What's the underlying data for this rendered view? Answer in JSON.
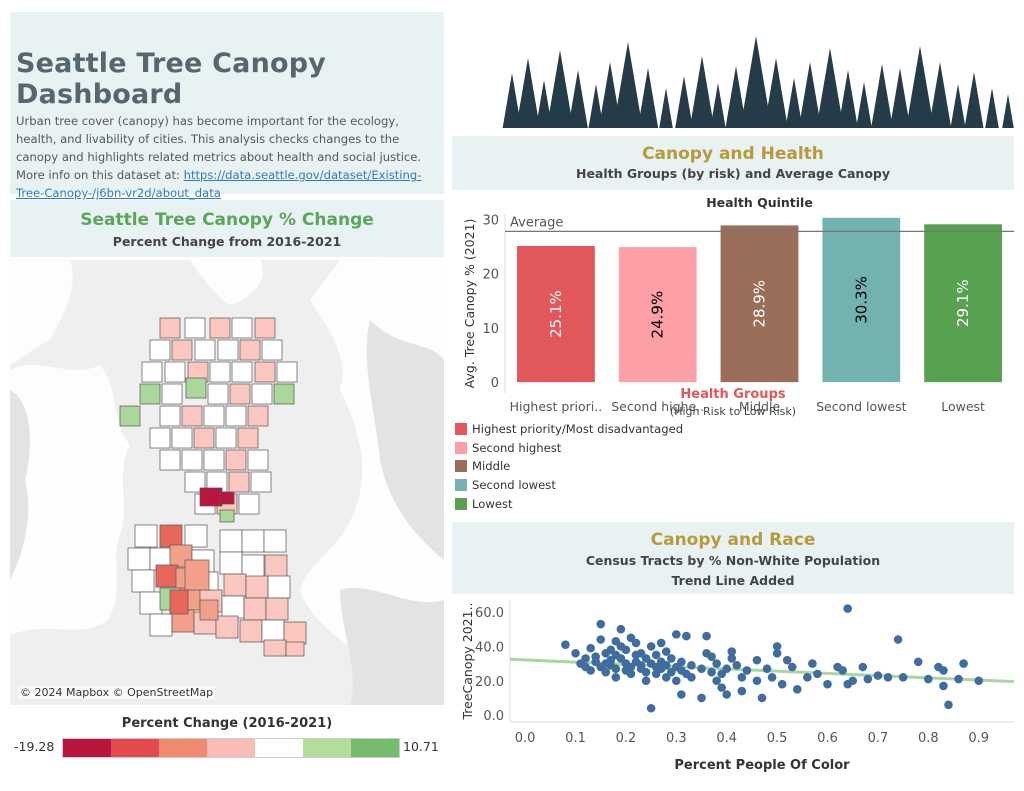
{
  "intro": {
    "title": "Seattle Tree Canopy Dashboard",
    "body": "Urban tree cover (canopy) has become important for the ecology, health, and livability of cities. This analysis checks changes to the canopy and highlights related metrics about health and social justice. More info on this dataset at: ",
    "link": "https://data.seattle.gov/dataset/Existing-Tree-Canopy-/j6bn-vr2d/about_data"
  },
  "map": {
    "title": "Seattle Tree Canopy % Change",
    "subtitle": "Percent Change from 2016-2021",
    "attribution": "© 2024 Mapbox © OpenStreetMap",
    "legend": {
      "title": "Percent Change (2016-2021)",
      "min": "-19.28",
      "max": "10.71",
      "colors": [
        "#b8163e",
        "#e24a4f",
        "#f08a6e",
        "#fbbcb5",
        "#ffffff",
        "#b2dd9c",
        "#74be6b"
      ]
    },
    "tract_colors": {
      "dark_red": "#b8163e",
      "red": "#e9665a",
      "salmon": "#f3a08a",
      "pink": "#fbc6bf",
      "white": "#ffffff",
      "green": "#a9d89a"
    }
  },
  "health": {
    "title": "Canopy and Health",
    "subtitle": "Health Groups (by risk) and Average Canopy",
    "legend_title": "Health Groups",
    "legend_subtitle": "(High Risk to Low Risk)",
    "legend": [
      {
        "label": "Highest priority/Most disadvantaged",
        "color": "#e1575a"
      },
      {
        "label": "Second highest",
        "color": "#fc9fa7"
      },
      {
        "label": "Middle",
        "color": "#9b6e59"
      },
      {
        "label": "Second lowest",
        "color": "#72b3b0"
      },
      {
        "label": "Lowest",
        "color": "#57a150"
      }
    ]
  },
  "race": {
    "title": "Canopy and Race",
    "subtitle1": "Census Tracts by % Non-White Population",
    "subtitle2": "Trend Line Added"
  },
  "chart_data": [
    {
      "type": "bar",
      "title": "Health Quintile",
      "ylabel": "Avg. Tree Canopy % (2021)",
      "xlabel": "",
      "categories": [
        "Highest priori..",
        "Second highe..",
        "Middle",
        "Second lowest",
        "Lowest"
      ],
      "values": [
        25.1,
        24.9,
        28.9,
        30.3,
        29.1
      ],
      "data_labels": [
        "25.1%",
        "24.9%",
        "28.9%",
        "30.3%",
        "29.1%"
      ],
      "colors": [
        "#e1575a",
        "#fc9fa7",
        "#9b6e59",
        "#72b3b0",
        "#57a150"
      ],
      "label_colors": [
        "#ffffff",
        "#000000",
        "#ffffff",
        "#000000",
        "#ffffff"
      ],
      "reference_line": {
        "label": "Average",
        "value": 27.8
      },
      "yticks": [
        0,
        10,
        20,
        30
      ],
      "ylim": [
        -2,
        31
      ]
    },
    {
      "type": "scatter",
      "xlabel": "Percent People Of Color",
      "ylabel": "TreeCanopy 2021..",
      "xlim": [
        -0.03,
        0.97
      ],
      "ylim": [
        -4,
        67
      ],
      "xticks": [
        0.0,
        0.1,
        0.2,
        0.3,
        0.4,
        0.5,
        0.6,
        0.7,
        0.8,
        0.9
      ],
      "xtick_labels": [
        "0.0",
        "0.1",
        "0.2",
        "0.3",
        "0.4",
        "0.5",
        "0.6",
        "0.7",
        "0.8",
        "0.9"
      ],
      "yticks": [
        0,
        20,
        40,
        60
      ],
      "ytick_labels": [
        "0.0",
        "20.0",
        "40.0",
        "60.0"
      ],
      "point_color": "#3f6d9e",
      "trend_color": "#a8d8a0",
      "trend": {
        "x": [
          -0.03,
          0.97
        ],
        "y": [
          32.5,
          19.5
        ]
      },
      "points": [
        [
          0.08,
          41
        ],
        [
          0.1,
          36
        ],
        [
          0.11,
          30
        ],
        [
          0.12,
          33
        ],
        [
          0.12,
          28
        ],
        [
          0.13,
          26
        ],
        [
          0.13,
          39
        ],
        [
          0.14,
          34
        ],
        [
          0.14,
          31
        ],
        [
          0.15,
          44
        ],
        [
          0.15,
          28
        ],
        [
          0.15,
          53
        ],
        [
          0.16,
          36
        ],
        [
          0.16,
          30
        ],
        [
          0.16,
          25
        ],
        [
          0.17,
          38
        ],
        [
          0.17,
          32
        ],
        [
          0.17,
          29
        ],
        [
          0.18,
          43
        ],
        [
          0.18,
          35
        ],
        [
          0.18,
          27
        ],
        [
          0.18,
          22
        ],
        [
          0.19,
          50
        ],
        [
          0.19,
          40
        ],
        [
          0.19,
          33
        ],
        [
          0.2,
          30
        ],
        [
          0.2,
          26
        ],
        [
          0.2,
          38
        ],
        [
          0.21,
          28
        ],
        [
          0.21,
          45
        ],
        [
          0.21,
          24
        ],
        [
          0.22,
          35
        ],
        [
          0.22,
          31
        ],
        [
          0.22,
          42
        ],
        [
          0.23,
          29
        ],
        [
          0.23,
          27
        ],
        [
          0.23,
          36
        ],
        [
          0.24,
          33
        ],
        [
          0.24,
          25
        ],
        [
          0.24,
          20
        ],
        [
          0.25,
          40
        ],
        [
          0.25,
          30
        ],
        [
          0.25,
          4
        ],
        [
          0.26,
          28
        ],
        [
          0.26,
          35
        ],
        [
          0.26,
          24
        ],
        [
          0.27,
          42
        ],
        [
          0.27,
          27
        ],
        [
          0.27,
          31
        ],
        [
          0.28,
          22
        ],
        [
          0.28,
          37
        ],
        [
          0.28,
          29
        ],
        [
          0.29,
          25
        ],
        [
          0.29,
          33
        ],
        [
          0.3,
          47
        ],
        [
          0.3,
          28
        ],
        [
          0.3,
          20
        ],
        [
          0.31,
          26
        ],
        [
          0.31,
          31
        ],
        [
          0.31,
          12
        ],
        [
          0.32,
          46
        ],
        [
          0.32,
          24
        ],
        [
          0.33,
          22
        ],
        [
          0.33,
          29
        ],
        [
          0.35,
          27
        ],
        [
          0.35,
          10
        ],
        [
          0.36,
          46
        ],
        [
          0.36,
          36
        ],
        [
          0.37,
          34
        ],
        [
          0.37,
          25
        ],
        [
          0.38,
          20
        ],
        [
          0.38,
          30
        ],
        [
          0.39,
          24
        ],
        [
          0.39,
          16
        ],
        [
          0.4,
          27
        ],
        [
          0.4,
          12
        ],
        [
          0.41,
          33
        ],
        [
          0.41,
          37
        ],
        [
          0.42,
          29
        ],
        [
          0.43,
          14
        ],
        [
          0.43,
          22
        ],
        [
          0.44,
          26
        ],
        [
          0.46,
          32
        ],
        [
          0.46,
          20
        ],
        [
          0.47,
          10
        ],
        [
          0.48,
          27
        ],
        [
          0.49,
          22
        ],
        [
          0.5,
          36
        ],
        [
          0.5,
          40
        ],
        [
          0.51,
          18
        ],
        [
          0.52,
          32
        ],
        [
          0.53,
          28
        ],
        [
          0.54,
          15
        ],
        [
          0.56,
          22
        ],
        [
          0.57,
          30
        ],
        [
          0.58,
          24
        ],
        [
          0.6,
          18
        ],
        [
          0.62,
          28
        ],
        [
          0.63,
          26
        ],
        [
          0.64,
          62
        ],
        [
          0.64,
          18
        ],
        [
          0.65,
          20
        ],
        [
          0.67,
          28
        ],
        [
          0.68,
          21
        ],
        [
          0.7,
          23
        ],
        [
          0.72,
          22
        ],
        [
          0.74,
          44
        ],
        [
          0.75,
          22
        ],
        [
          0.78,
          31
        ],
        [
          0.8,
          21
        ],
        [
          0.82,
          28
        ],
        [
          0.83,
          26
        ],
        [
          0.83,
          17
        ],
        [
          0.84,
          6
        ],
        [
          0.86,
          21
        ],
        [
          0.87,
          30
        ],
        [
          0.9,
          20
        ]
      ]
    }
  ]
}
